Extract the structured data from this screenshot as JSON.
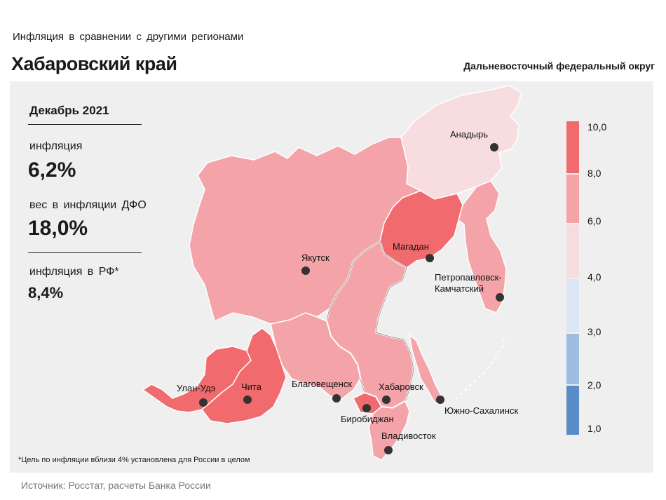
{
  "header": {
    "subtitle": "Инфляция  в сравнении  с другими  регионами",
    "title": "Хабаровский край",
    "district": "Дальневосточный федеральный округ"
  },
  "stats": {
    "period": "Декабрь 2021",
    "inflation_label": "инфляция",
    "inflation_value": "6,2%",
    "weight_label": "вес в инфляции  ДФО",
    "weight_value": "18,0%",
    "rf_label": "инфляция  в РФ*",
    "rf_value": "8,4%"
  },
  "footnote": "*Цель по инфляции вблизи 4% установлена для России в целом",
  "source": "Источник: Росстат, расчеты Банка России",
  "legend": {
    "ticks": [
      "10,0",
      "8,0",
      "6,0",
      "4,0",
      "3,0",
      "2,0",
      "1,0"
    ],
    "colors": [
      "#f06a6e",
      "#f4a4a8",
      "#f7dde0",
      "#dde6f4",
      "#9ebde0",
      "#5a8cc8"
    ]
  },
  "colors": {
    "high": "#f06a6e",
    "mid": "#f4a4a8",
    "low": "#f7dde0",
    "panel": "#efefef"
  },
  "cities": [
    {
      "name": "Анадырь"
    },
    {
      "name": "Магадан"
    },
    {
      "name": "Якутск"
    },
    {
      "name": "Петропавловск-"
    },
    {
      "name": "Камчатский"
    },
    {
      "name": "Улан-Удэ"
    },
    {
      "name": "Чита"
    },
    {
      "name": "Благовещенск"
    },
    {
      "name": "Хабаровск"
    },
    {
      "name": "Биробиджан"
    },
    {
      "name": "Южно-Сахалинск"
    },
    {
      "name": "Владивосток"
    }
  ]
}
